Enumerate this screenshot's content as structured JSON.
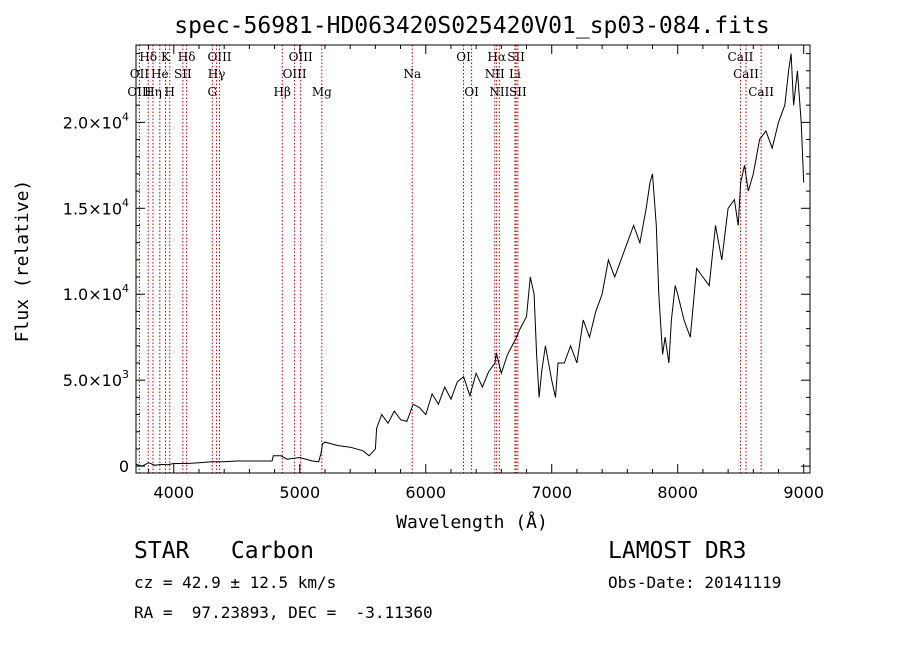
{
  "chart_data": {
    "type": "line",
    "title": "spec-56981-HD063420S025420V01_sp03-084.fits",
    "xlabel": "Wavelength (Å)",
    "ylabel": "Flux (relative)",
    "xlim": [
      3700,
      9050
    ],
    "ylim": [
      -400,
      24500
    ],
    "x_ticks": [
      4000,
      5000,
      6000,
      7000,
      8000,
      9000
    ],
    "x_tick_labels": [
      "4000",
      "5000",
      "6000",
      "7000",
      "8000",
      "9000"
    ],
    "y_ticks": [
      0,
      5000,
      10000,
      15000,
      20000
    ],
    "y_tick_labels": [
      {
        "mant": "0",
        "exp": ""
      },
      {
        "mant": "5.0×10",
        "exp": "3"
      },
      {
        "mant": "1.0×10",
        "exp": "4"
      },
      {
        "mant": "1.5×10",
        "exp": "4"
      },
      {
        "mant": "2.0×10",
        "exp": "4"
      }
    ],
    "series": [
      {
        "name": "flux",
        "x": [
          3700,
          3750,
          3800,
          3850,
          3900,
          3950,
          4000,
          4100,
          4200,
          4300,
          4400,
          4500,
          4600,
          4700,
          4780,
          4790,
          4850,
          4900,
          5000,
          5100,
          5150,
          5170,
          5180,
          5200,
          5300,
          5400,
          5500,
          5550,
          5600,
          5610,
          5650,
          5700,
          5750,
          5800,
          5850,
          5900,
          5950,
          6000,
          6050,
          6100,
          6150,
          6200,
          6250,
          6300,
          6350,
          6400,
          6450,
          6500,
          6550,
          6560,
          6600,
          6650,
          6700,
          6720,
          6750,
          6800,
          6830,
          6860,
          6880,
          6900,
          6920,
          6950,
          7000,
          7030,
          7050,
          7100,
          7150,
          7200,
          7250,
          7300,
          7350,
          7400,
          7450,
          7500,
          7550,
          7600,
          7650,
          7700,
          7750,
          7780,
          7800,
          7830,
          7850,
          7880,
          7900,
          7930,
          7950,
          7980,
          8000,
          8050,
          8100,
          8150,
          8200,
          8250,
          8300,
          8350,
          8400,
          8450,
          8480,
          8500,
          8530,
          8560,
          8600,
          8650,
          8700,
          8750,
          8800,
          8850,
          8880,
          8900,
          8920,
          8950,
          8980,
          9000
        ],
        "y": [
          100,
          0,
          200,
          50,
          100,
          80,
          150,
          150,
          200,
          250,
          250,
          300,
          300,
          300,
          300,
          600,
          600,
          400,
          500,
          300,
          250,
          800,
          1300,
          1400,
          1200,
          1100,
          900,
          600,
          1000,
          2200,
          3000,
          2500,
          3200,
          2700,
          2600,
          3600,
          3400,
          3000,
          4200,
          3600,
          4600,
          3900,
          4900,
          5200,
          4100,
          5400,
          4600,
          5500,
          6000,
          6600,
          5400,
          6500,
          7200,
          7500,
          8000,
          8700,
          11000,
          10000,
          6500,
          4000,
          5500,
          7000,
          5000,
          4000,
          6000,
          6000,
          7000,
          6000,
          8500,
          7500,
          9000,
          10000,
          12000,
          11000,
          12000,
          13000,
          14000,
          13000,
          15000,
          16500,
          17000,
          14000,
          10000,
          6500,
          7500,
          6000,
          8500,
          10500,
          10000,
          8500,
          7500,
          11500,
          11000,
          10500,
          14000,
          12000,
          15000,
          15500,
          14000,
          16500,
          17500,
          16000,
          17000,
          19000,
          19500,
          18500,
          20000,
          21000,
          23000,
          24000,
          21000,
          23000,
          20000,
          16500
        ]
      }
    ],
    "lines_top": [
      {
        "label": "Hδ",
        "x": 3797
      },
      {
        "label": "K",
        "x": 3934
      },
      {
        "label": "Hδ",
        "x": 4102
      },
      {
        "label": "OIII",
        "x": 4363
      },
      {
        "label": "OIII",
        "x": 5007
      },
      {
        "label": "OI",
        "x": 6300
      },
      {
        "label": "Hα",
        "x": 6563
      },
      {
        "label": "SII",
        "x": 6717
      },
      {
        "label": "CaII",
        "x": 8498
      }
    ],
    "lines_mid": [
      {
        "label": "OII",
        "x": 3727
      },
      {
        "label": "He",
        "x": 3889
      },
      {
        "label": "SII",
        "x": 4072
      },
      {
        "label": "Hγ",
        "x": 4340
      },
      {
        "label": "OIII",
        "x": 4959
      },
      {
        "label": "Na",
        "x": 5893
      },
      {
        "label": "NII",
        "x": 6548
      },
      {
        "label": "Li",
        "x": 6708
      },
      {
        "label": "CaII",
        "x": 8542
      }
    ],
    "lines_low": [
      {
        "label": "OIII",
        "x": 3727
      },
      {
        "label": "Hη",
        "x": 3835
      },
      {
        "label": "H",
        "x": 3968
      },
      {
        "label": "G",
        "x": 4306
      },
      {
        "label": "Hβ",
        "x": 4861
      },
      {
        "label": "Mg",
        "x": 5175
      },
      {
        "label": "OI",
        "x": 6364
      },
      {
        "label": "NII",
        "x": 6584
      },
      {
        "label": "SII",
        "x": 6731
      },
      {
        "label": "CaII",
        "x": 8662
      }
    ],
    "line_color": "#b00000"
  },
  "info": {
    "class": "STAR   Carbon",
    "survey": "LAMOST DR3",
    "cz": "cz = 42.9 ± 12.5 km/s",
    "obsdate": "Obs-Date: 20141119",
    "radec": "RA =  97.23893, DEC =  -3.11360"
  }
}
